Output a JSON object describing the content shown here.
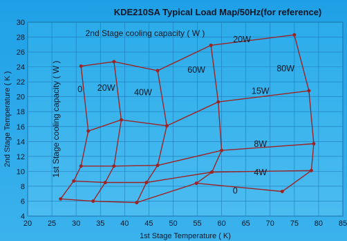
{
  "chart_data": {
    "type": "line",
    "title": "KDE210SA Typical Load Map/50Hz(for reference)",
    "xlabel": "1st Stage Temperature ( K)",
    "ylabel": "2nd Stage Temperature ( K )",
    "xlim": [
      20,
      85
    ],
    "ylim": [
      4,
      30
    ],
    "xticks": [
      20,
      25,
      30,
      35,
      40,
      45,
      50,
      55,
      60,
      65,
      70,
      75,
      80,
      85
    ],
    "yticks": [
      4,
      6,
      8,
      10,
      12,
      14,
      16,
      18,
      20,
      22,
      24,
      26,
      28,
      30
    ],
    "grid": true,
    "line_color": "#9e2323",
    "annotations": {
      "stage2_title": "2nd Stage cooling capacity ( W )",
      "stage1_title": "1st Stage cooling capacity ( W )"
    },
    "series": [
      {
        "name": "0",
        "group": "2nd stage",
        "x": [
          31.0,
          32.5,
          31.0,
          29.5,
          26.8
        ],
        "y": [
          24.1,
          15.4,
          10.7,
          8.7,
          6.3
        ]
      },
      {
        "name": "20W",
        "group": "2nd stage",
        "x": [
          37.8,
          39.3,
          37.8,
          36.0,
          33.5
        ],
        "y": [
          24.7,
          16.9,
          10.7,
          8.5,
          6.0
        ]
      },
      {
        "name": "40W",
        "group": "2nd stage",
        "x": [
          46.8,
          48.7,
          46.8,
          44.5,
          42.5
        ],
        "y": [
          23.5,
          16.1,
          10.8,
          8.5,
          5.8
        ]
      },
      {
        "name": "60W",
        "group": "2nd stage",
        "x": [
          57.8,
          59.3,
          60.0,
          58.0,
          54.8
        ],
        "y": [
          26.9,
          19.3,
          12.8,
          9.9,
          8.4
        ]
      },
      {
        "name": "80W",
        "group": "2nd stage",
        "x": [
          75.0,
          78.0,
          79.0,
          78.5,
          72.5
        ],
        "y": [
          28.3,
          20.8,
          13.7,
          10.1,
          7.3
        ]
      },
      {
        "name": "0",
        "group": "1st stage",
        "x": [
          26.8,
          33.5,
          42.5,
          54.8,
          72.5
        ],
        "y": [
          6.3,
          6.0,
          5.8,
          8.4,
          7.3
        ]
      },
      {
        "name": "4W",
        "group": "1st stage",
        "x": [
          29.5,
          36.0,
          44.5,
          58.0,
          78.5
        ],
        "y": [
          8.7,
          8.5,
          8.5,
          9.9,
          10.1
        ]
      },
      {
        "name": "8W",
        "group": "1st stage",
        "x": [
          31.0,
          37.8,
          46.8,
          60.0,
          79.0
        ],
        "y": [
          10.7,
          10.7,
          10.8,
          12.8,
          13.7
        ]
      },
      {
        "name": "15W",
        "group": "1st stage",
        "x": [
          32.5,
          39.3,
          48.7,
          59.3,
          78.0
        ],
        "y": [
          15.4,
          16.9,
          16.1,
          19.3,
          20.8
        ]
      },
      {
        "name": "20W",
        "group": "1st stage",
        "x": [
          31.0,
          37.8,
          46.8,
          57.8,
          75.0
        ],
        "y": [
          24.1,
          24.7,
          23.5,
          26.9,
          28.3
        ]
      }
    ],
    "curve_labels": [
      {
        "text": "0",
        "x": 30.8,
        "y": 20.6
      },
      {
        "text": "20W",
        "x": 36.2,
        "y": 20.8
      },
      {
        "text": "40W",
        "x": 43.8,
        "y": 20.2
      },
      {
        "text": "60W",
        "x": 54.8,
        "y": 23.2
      },
      {
        "text": "80W",
        "x": 73.2,
        "y": 23.4
      },
      {
        "text": "20W",
        "x": 64.2,
        "y": 27.3
      },
      {
        "text": "15W",
        "x": 68.0,
        "y": 20.4
      },
      {
        "text": "8W",
        "x": 68.0,
        "y": 13.3
      },
      {
        "text": "4W",
        "x": 68.0,
        "y": 9.5
      },
      {
        "text": "0",
        "x": 62.8,
        "y": 7.0
      }
    ]
  }
}
